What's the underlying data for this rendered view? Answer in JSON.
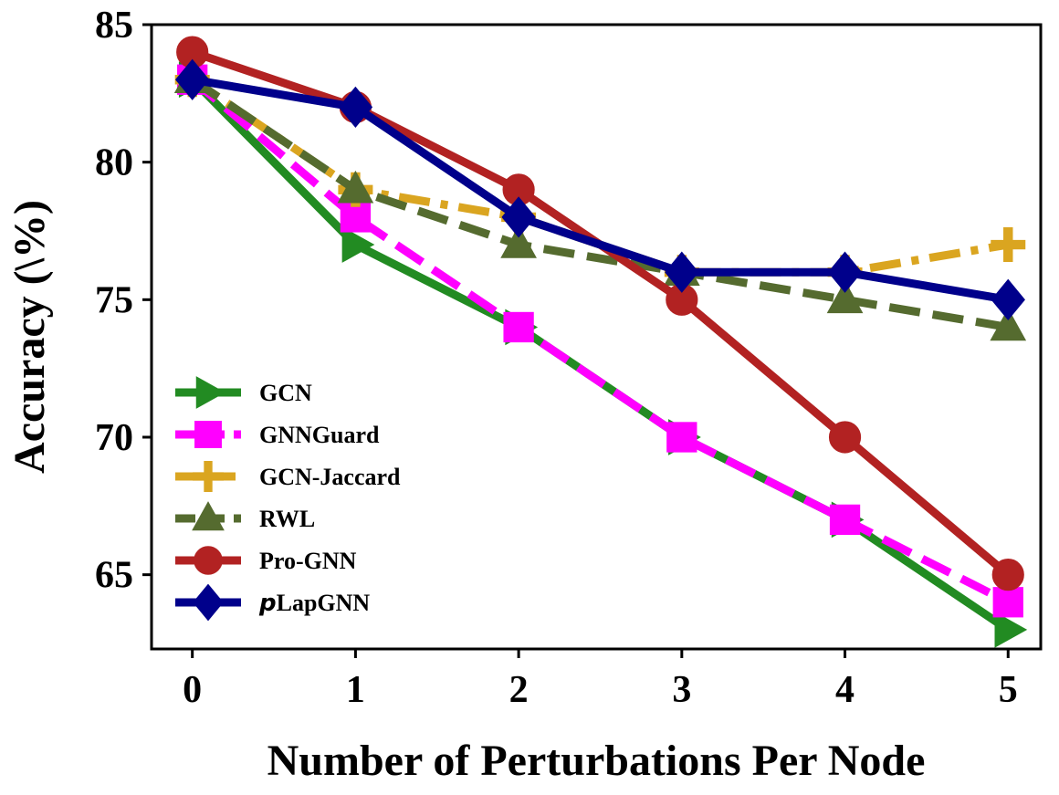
{
  "chart_data": {
    "type": "line",
    "title": "",
    "xlabel": "Number of Perturbations Per Node",
    "ylabel": "Accuracy (\\%)",
    "x": [
      0,
      1,
      2,
      3,
      4,
      5
    ],
    "xticks": [
      "0",
      "1",
      "2",
      "3",
      "4",
      "5"
    ],
    "yticks": [
      "65",
      "70",
      "75",
      "80",
      "85"
    ],
    "ylim": [
      62.3,
      85
    ],
    "xlim": [
      -0.25,
      5.2
    ],
    "grid": false,
    "legend_position": "lower-left",
    "series": [
      {
        "name": "GCN",
        "prefix": "",
        "values": [
          83,
          77,
          74,
          70,
          67,
          63
        ],
        "color": "#228B22",
        "marker": "triangle-right",
        "dash": "solid"
      },
      {
        "name": "GNNGuard",
        "prefix": "",
        "values": [
          83,
          78,
          74,
          70,
          67,
          64
        ],
        "color": "#FF00FF",
        "marker": "square",
        "dash": "dashed"
      },
      {
        "name": "GCN-Jaccard",
        "prefix": "",
        "values": [
          83,
          79,
          78,
          76,
          76,
          77
        ],
        "color": "#DAA520",
        "marker": "plus",
        "dash": "dashdot"
      },
      {
        "name": "RWL",
        "prefix": "",
        "values": [
          83,
          79,
          77,
          76,
          75,
          74
        ],
        "color": "#556B2F",
        "marker": "triangle-up",
        "dash": "dashed"
      },
      {
        "name": "Pro-GNN",
        "prefix": "",
        "values": [
          84,
          82,
          79,
          75,
          70,
          65
        ],
        "color": "#B22222",
        "marker": "circle",
        "dash": "solid"
      },
      {
        "name": "LapGNN",
        "prefix": "p",
        "values": [
          83,
          82,
          78,
          76,
          76,
          75
        ],
        "color": "#00008B",
        "marker": "diamond",
        "dash": "solid"
      }
    ]
  }
}
